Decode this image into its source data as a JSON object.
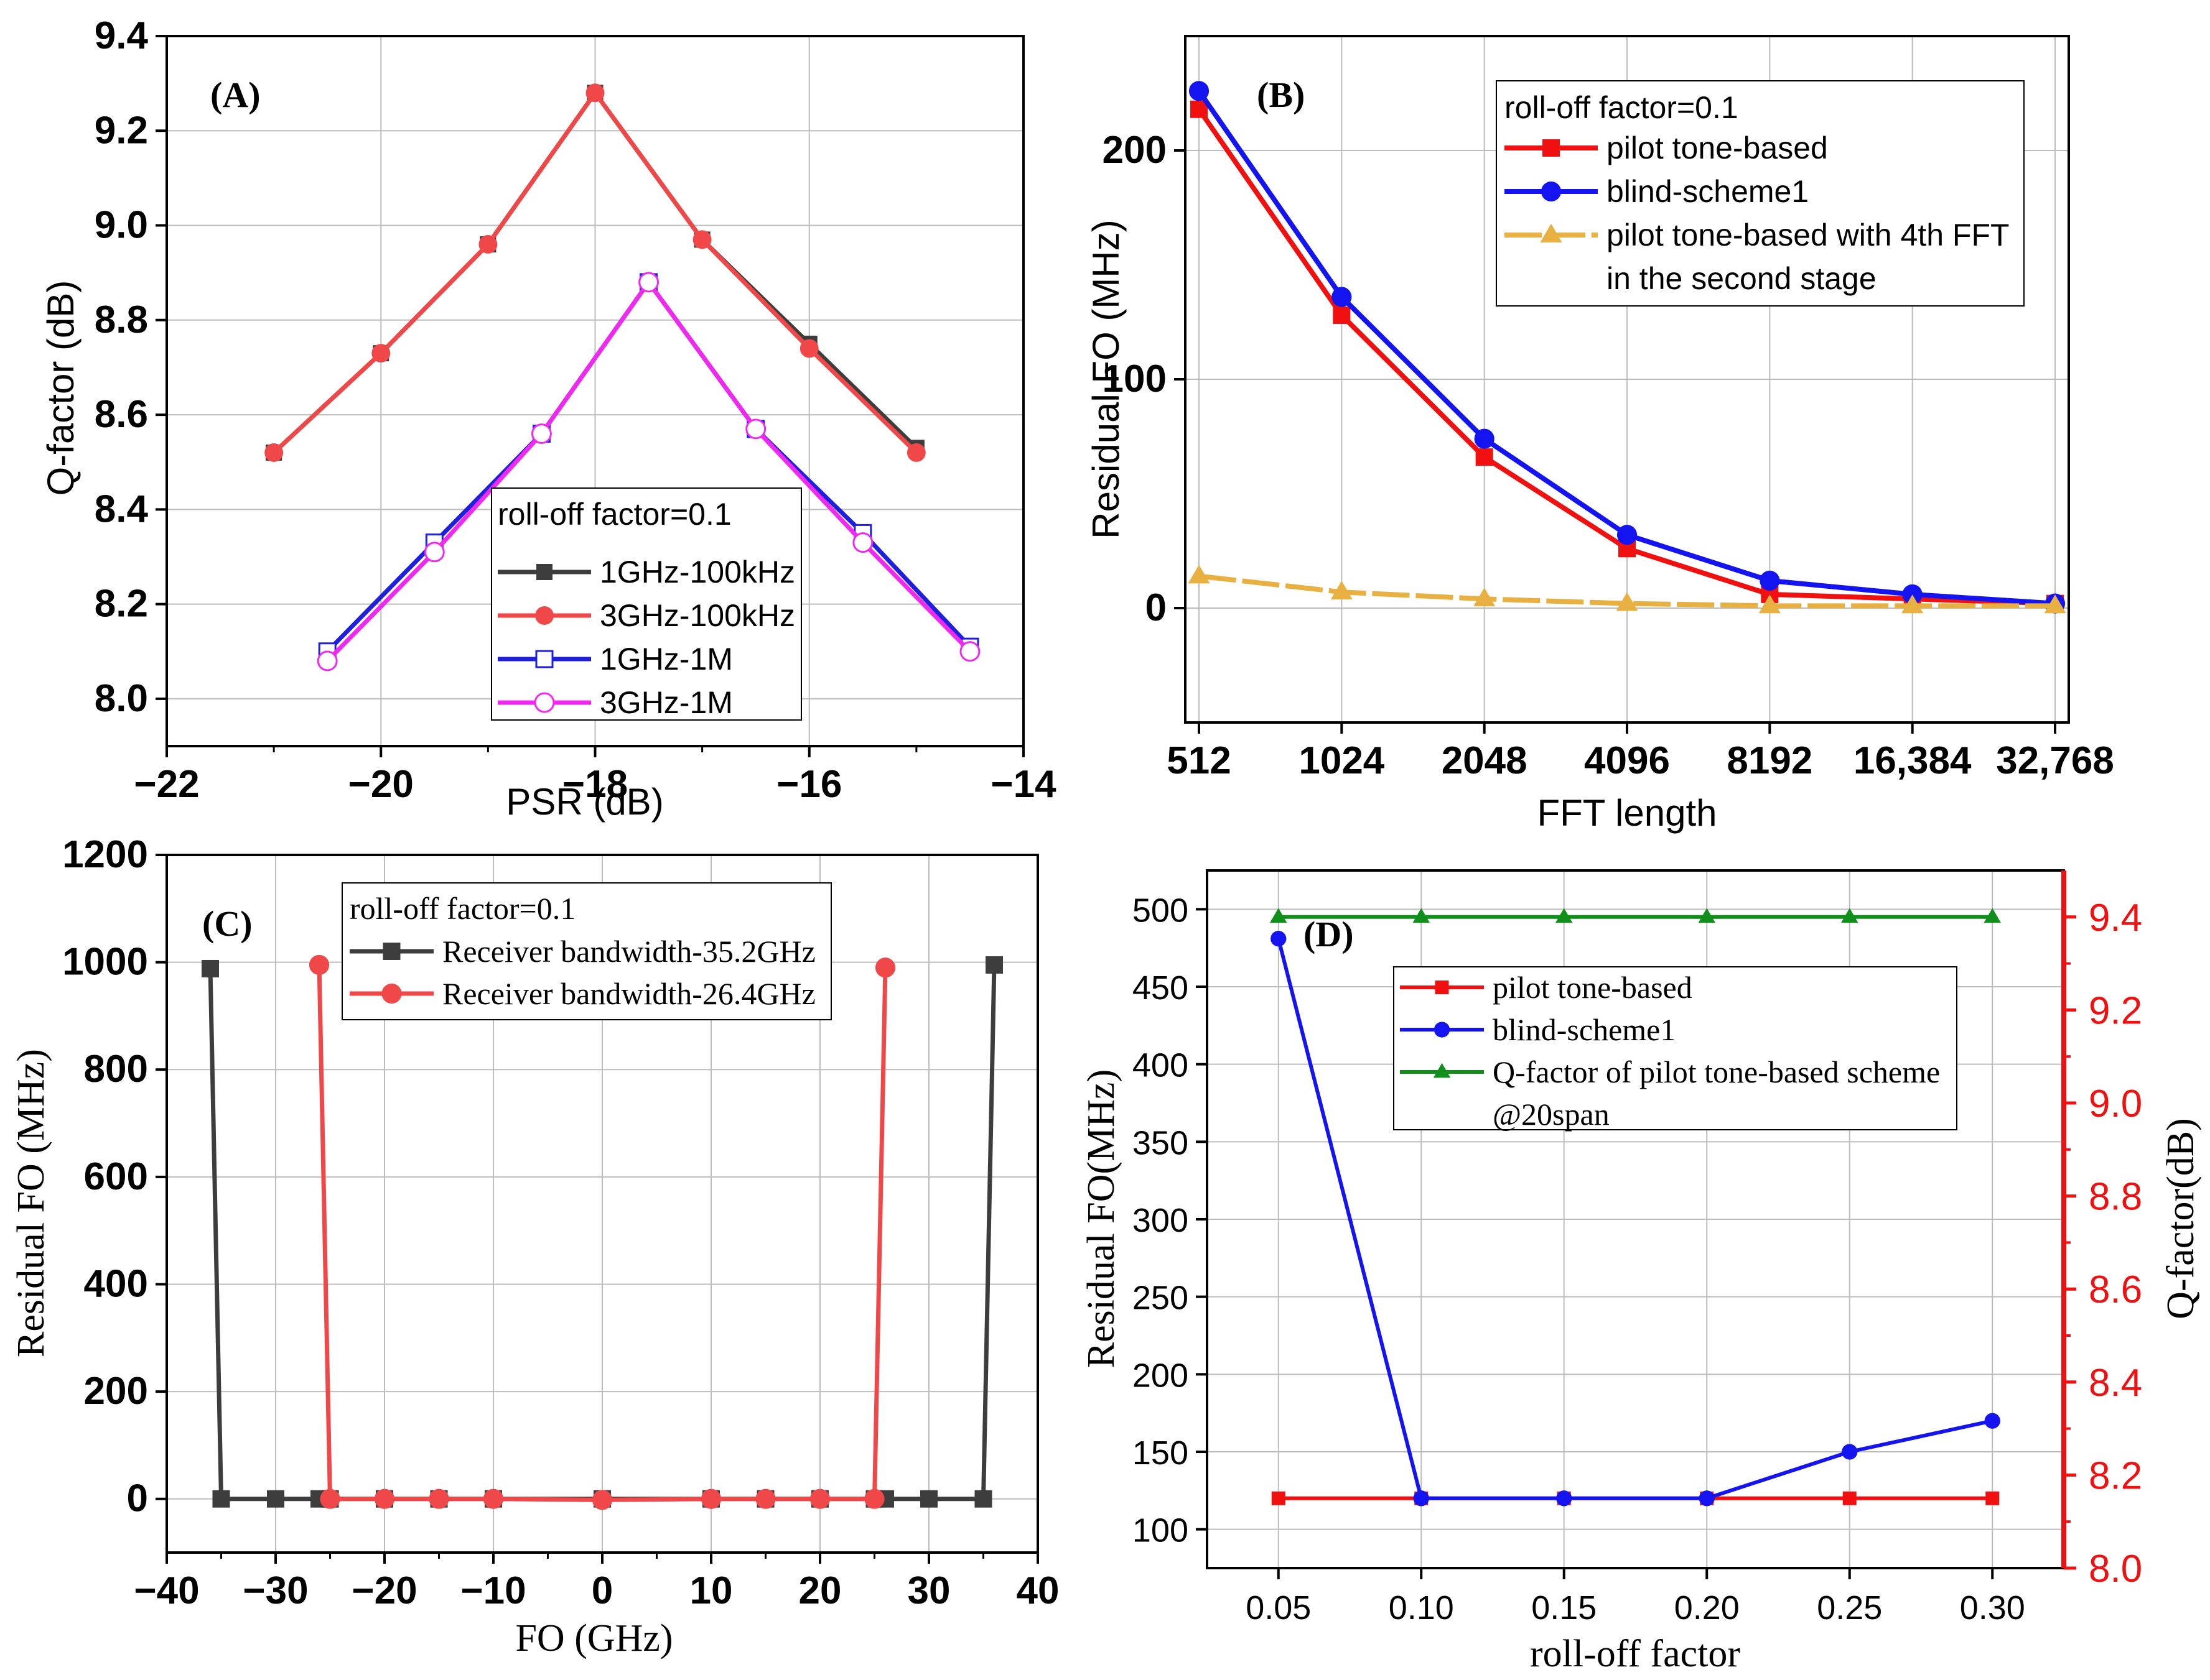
{
  "chart_data": [
    {
      "id": "A",
      "type": "line",
      "panel_label": "(A)",
      "xlabel": "PSR (dB)",
      "ylabel": "Q-factor (dB)",
      "xlim": [
        -22,
        -14
      ],
      "ylim": [
        7.9,
        9.4
      ],
      "x_ticks": [
        "−22",
        "−20",
        "−18",
        "−16",
        "−14"
      ],
      "x_tick_values": [
        -22,
        -20,
        -18,
        -16,
        -14
      ],
      "y_ticks": [
        "8.0",
        "8.2",
        "8.4",
        "8.6",
        "8.8",
        "9.0",
        "9.2",
        "9.4"
      ],
      "y_tick_values": [
        8.0,
        8.2,
        8.4,
        8.6,
        8.8,
        9.0,
        9.2,
        9.4
      ],
      "legend_title": "roll-off factor=0.1",
      "series": [
        {
          "name": "1GHz-100kHz",
          "color": "#3d3d3d",
          "marker": "square-filled",
          "x": [
            -21,
            -20,
            -19,
            -18,
            -17,
            -16,
            -15
          ],
          "values": [
            8.52,
            8.73,
            8.96,
            9.28,
            8.97,
            8.75,
            8.53
          ]
        },
        {
          "name": "3GHz-100kHz",
          "color": "#f04848",
          "marker": "circle-filled",
          "x": [
            -21,
            -20,
            -19,
            -18,
            -17,
            -16,
            -15
          ],
          "values": [
            8.52,
            8.73,
            8.96,
            9.28,
            8.97,
            8.74,
            8.52
          ]
        },
        {
          "name": "1GHz-1M",
          "color": "#1f1fe0",
          "marker": "square-open",
          "x": [
            -20.5,
            -19.5,
            -18.5,
            -17.5,
            -16.5,
            -15.5,
            -14.5
          ],
          "values": [
            8.1,
            8.33,
            8.56,
            8.88,
            8.57,
            8.35,
            8.11
          ]
        },
        {
          "name": "3GHz-1M",
          "color": "#f028f0",
          "marker": "circle-open",
          "x": [
            -20.5,
            -19.5,
            -18.5,
            -17.5,
            -16.5,
            -15.5,
            -14.5
          ],
          "values": [
            8.08,
            8.31,
            8.56,
            8.88,
            8.57,
            8.33,
            8.1
          ]
        }
      ]
    },
    {
      "id": "B",
      "type": "line",
      "panel_label": "(B)",
      "xlabel": "FFT length",
      "ylabel": "Residual FO (MHz)",
      "categories": [
        "512",
        "1024",
        "2048",
        "4096",
        "8192",
        "16,384",
        "32,768"
      ],
      "ylim": [
        -50,
        250
      ],
      "y_ticks": [
        "0",
        "100",
        "200"
      ],
      "y_tick_values": [
        0,
        100,
        200
      ],
      "legend_title": "roll-off factor=0.1",
      "series": [
        {
          "name": "pilot tone-based",
          "color": "#f01010",
          "marker": "square-filled",
          "values": [
            218,
            128,
            66,
            26,
            6,
            4,
            2
          ]
        },
        {
          "name": "blind-scheme1",
          "color": "#1414f0",
          "marker": "circle-filled",
          "values": [
            226,
            136,
            74,
            32,
            12,
            6,
            2
          ]
        },
        {
          "name": "pilot tone-based with 4th FFT",
          "name_line2": "in the second stage",
          "color": "#e8b040",
          "marker": "triangle-filled",
          "values": [
            14,
            7,
            4,
            2,
            1,
            1,
            1
          ]
        }
      ]
    },
    {
      "id": "C",
      "type": "line",
      "panel_label": "(C)",
      "xlabel": "FO (GHz)",
      "ylabel": "Residual FO (MHz)",
      "xlim": [
        -40,
        40
      ],
      "ylim": [
        -100,
        1200
      ],
      "x_ticks": [
        "−40",
        "−30",
        "−20",
        "−10",
        "0",
        "10",
        "20",
        "30",
        "40"
      ],
      "x_tick_values": [
        -40,
        -30,
        -20,
        -10,
        0,
        10,
        20,
        30,
        40
      ],
      "y_ticks": [
        "0",
        "200",
        "400",
        "600",
        "800",
        "1000",
        "1200"
      ],
      "y_tick_values": [
        0,
        200,
        400,
        600,
        800,
        1000,
        1200
      ],
      "legend_title": "roll-off factor=0.1",
      "series": [
        {
          "name": "Receiver bandwidth-35.2GHz",
          "color": "#3d3d3d",
          "marker": "square-filled",
          "x": [
            -36,
            -35,
            -30,
            -26,
            -25,
            -20,
            -15,
            -10,
            0,
            10,
            15,
            20,
            25,
            26,
            30,
            35,
            36
          ],
          "values": [
            988,
            0,
            0,
            0,
            0,
            0,
            0,
            0,
            0,
            0,
            0,
            0,
            0,
            0,
            0,
            0,
            995
          ]
        },
        {
          "name": "Receiver bandwidth-26.4GHz",
          "color": "#f04848",
          "marker": "circle-filled",
          "x": [
            -26,
            -25,
            -20,
            -15,
            -10,
            0,
            10,
            15,
            20,
            25,
            26
          ],
          "values": [
            995,
            0,
            0,
            0,
            0,
            -2,
            0,
            0,
            0,
            0,
            990
          ]
        }
      ]
    },
    {
      "id": "D",
      "type": "line",
      "panel_label": "(D)",
      "xlabel": "roll-off factor",
      "ylabel": "Residual FO(MHz)",
      "y2label": "Q-factor(dB)",
      "xlim": [
        0.025,
        0.325
      ],
      "ylim": [
        75,
        525
      ],
      "y2lim": [
        8.0,
        9.5
      ],
      "x_ticks": [
        "0.05",
        "0.10",
        "0.15",
        "0.20",
        "0.25",
        "0.30"
      ],
      "x_tick_values": [
        0.05,
        0.1,
        0.15,
        0.2,
        0.25,
        0.3
      ],
      "y_ticks": [
        "100",
        "150",
        "200",
        "250",
        "300",
        "350",
        "400",
        "450",
        "500"
      ],
      "y_tick_values": [
        100,
        150,
        200,
        250,
        300,
        350,
        400,
        450,
        500
      ],
      "y2_ticks": [
        "8.0",
        "8.2",
        "8.4",
        "8.6",
        "8.8",
        "9.0",
        "9.2",
        "9.4"
      ],
      "y2_tick_values": [
        8.0,
        8.2,
        8.4,
        8.6,
        8.8,
        9.0,
        9.2,
        9.4
      ],
      "series": [
        {
          "name": "pilot tone-based",
          "color": "#f01010",
          "marker": "square-filled",
          "axis": "left",
          "x": [
            0.05,
            0.1,
            0.15,
            0.2,
            0.25,
            0.3
          ],
          "values": [
            120,
            120,
            120,
            120,
            120,
            120
          ]
        },
        {
          "name": "blind-scheme1",
          "color": "#1414f0",
          "marker": "circle-filled",
          "axis": "left",
          "x": [
            0.05,
            0.1,
            0.15,
            0.2,
            0.25,
            0.3
          ],
          "values": [
            481,
            120,
            120,
            120,
            150,
            170
          ]
        },
        {
          "name": "Q-factor of pilot tone-based scheme",
          "name_line2": "@20span",
          "color": "#10901a",
          "marker": "triangle-filled",
          "axis": "right",
          "x": [
            0.05,
            0.1,
            0.15,
            0.2,
            0.25,
            0.3
          ],
          "values": [
            9.4,
            9.4,
            9.4,
            9.4,
            9.4,
            9.4
          ]
        }
      ]
    }
  ]
}
